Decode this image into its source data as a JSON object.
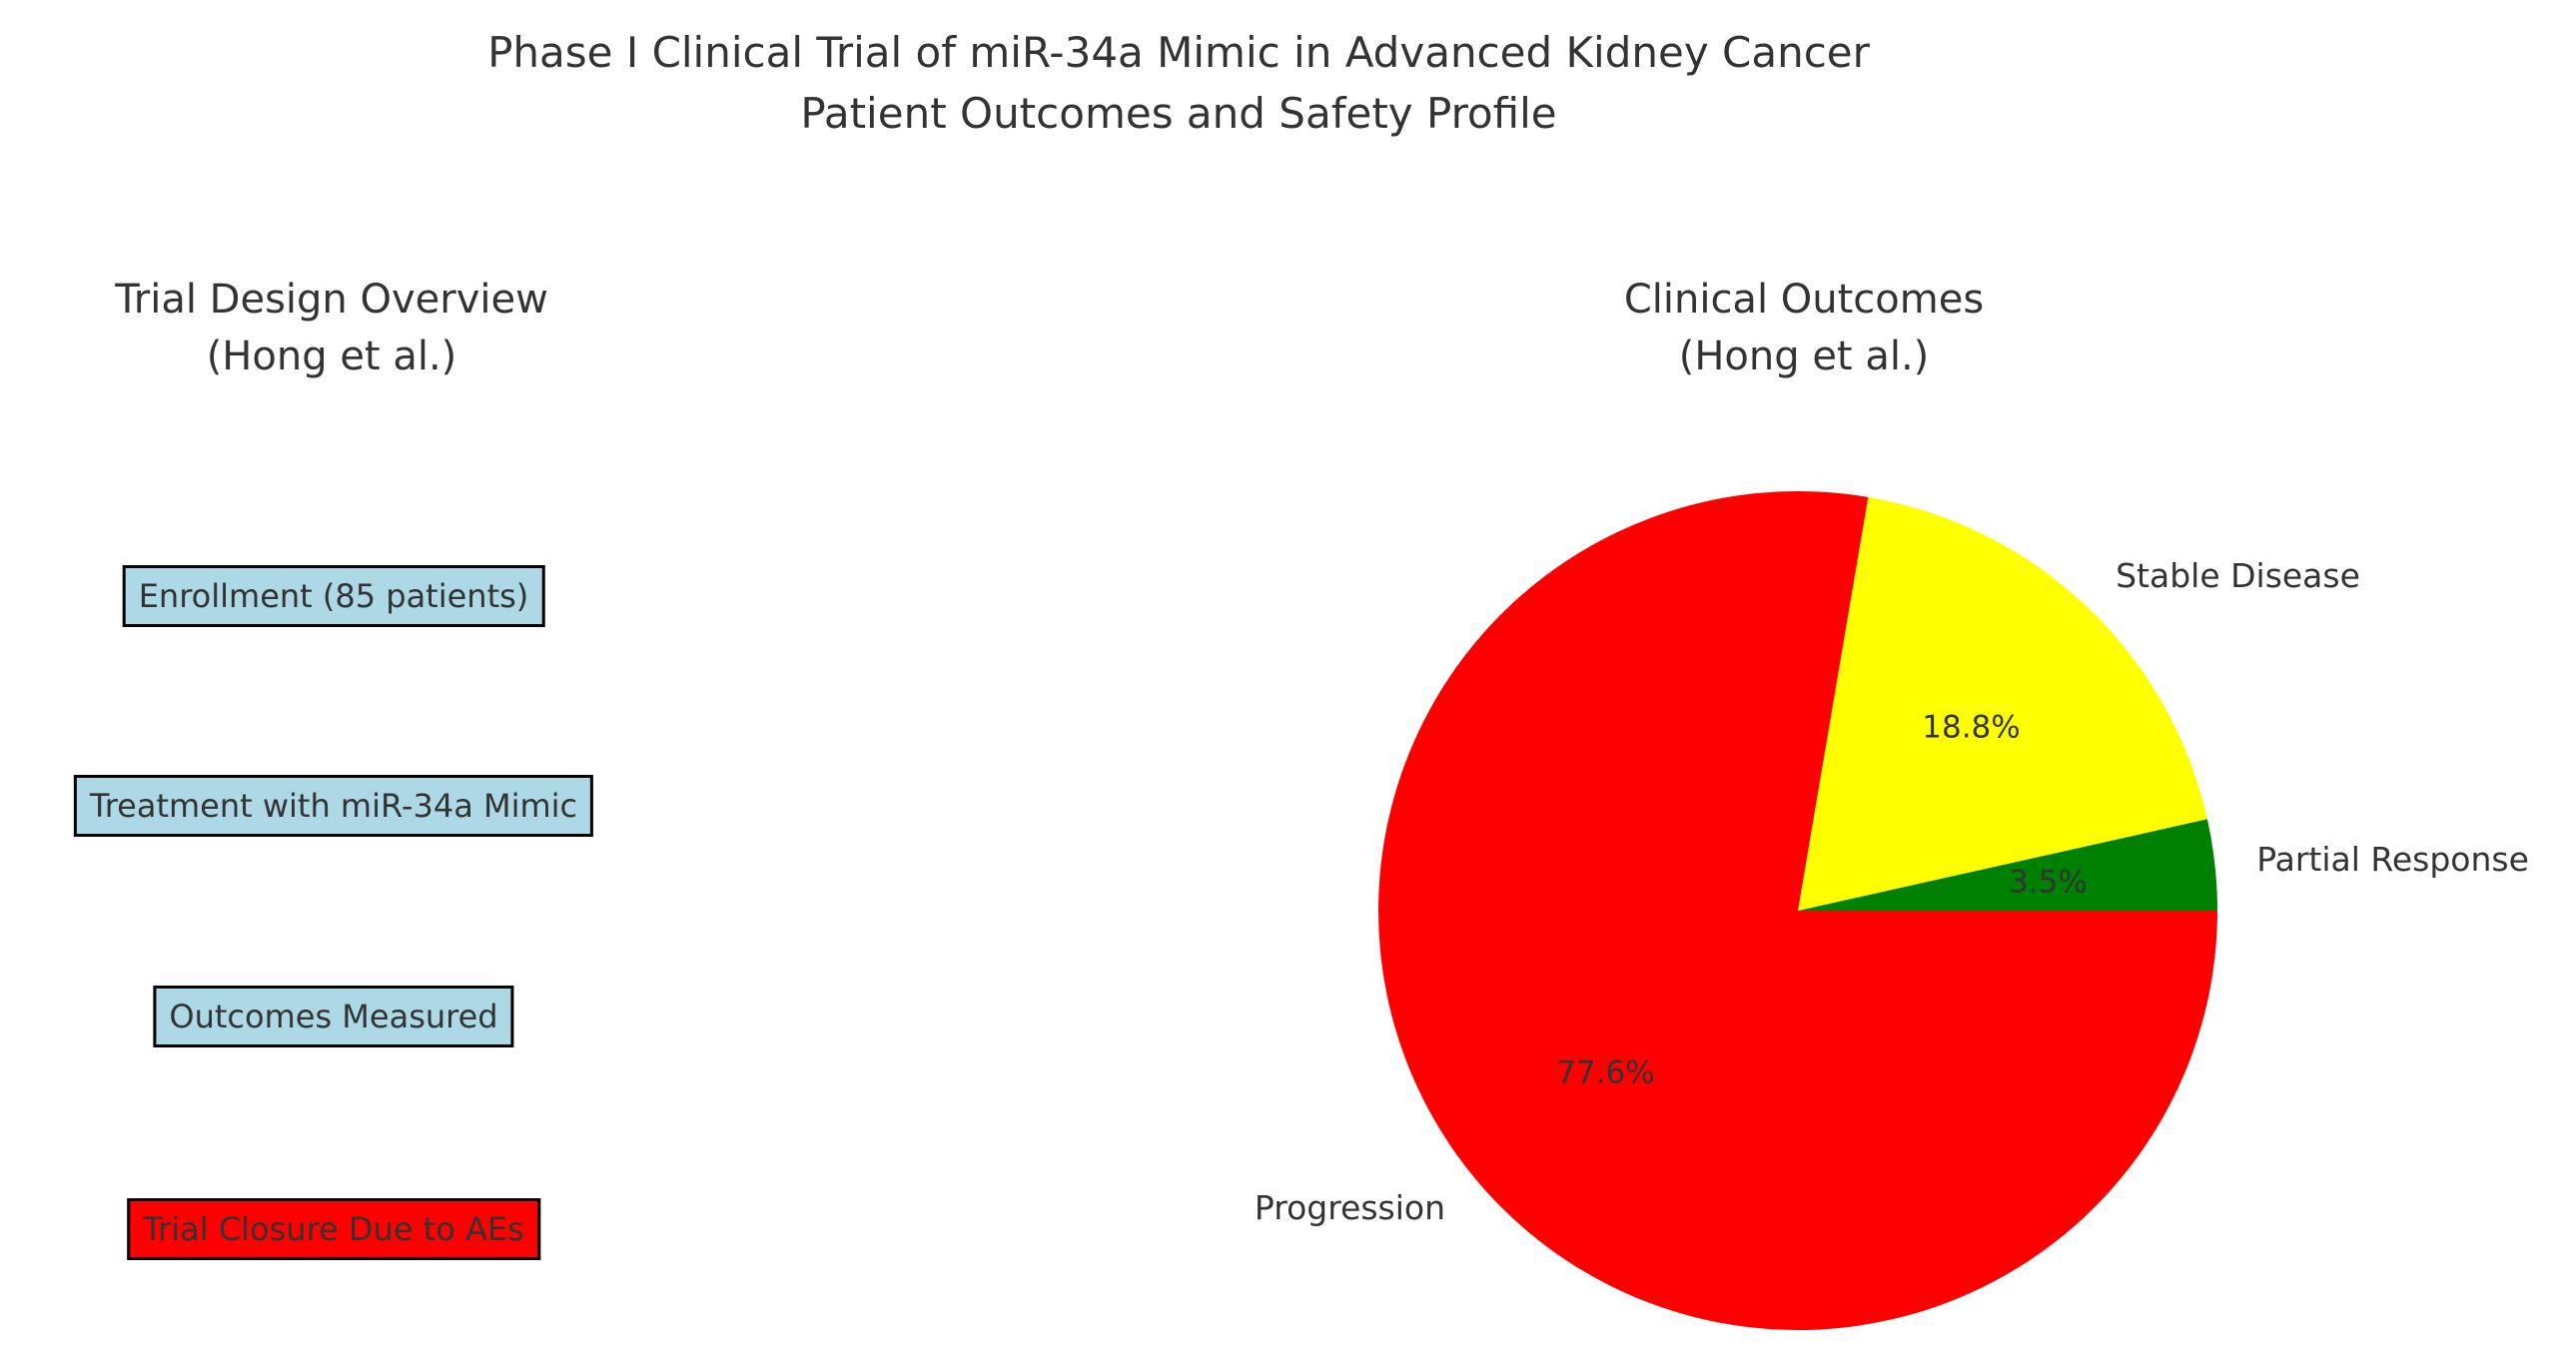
{
  "figure": {
    "title_line1": "Phase I Clinical Trial of miR-34a Mimic in Advanced Kidney Cancer",
    "title_line2": "Patient Outcomes and Safety Profile",
    "background_color": "#ffffff",
    "text_color": "#333333"
  },
  "flowchart": {
    "title_line1": "Trial Design Overview",
    "title_line2": "(Hong et al.)",
    "steps": [
      {
        "label": "Enrollment (85 patients)",
        "fill_color": "#add8e6",
        "border_color": "#000000"
      },
      {
        "label": "Treatment with miR-34a Mimic",
        "fill_color": "#add8e6",
        "border_color": "#000000"
      },
      {
        "label": "Outcomes Measured",
        "fill_color": "#add8e6",
        "border_color": "#000000"
      },
      {
        "label": "Trial Closure Due to AEs",
        "fill_color": "#ff0000",
        "border_color": "#000000"
      }
    ]
  },
  "chart_data": {
    "type": "pie",
    "title_line1": "Clinical Outcomes",
    "title_line2": "(Hong et al.)",
    "slices": [
      {
        "label": "Partial Response",
        "value": 3.5,
        "pct_label": "3.5%",
        "color": "#008000"
      },
      {
        "label": "Stable Disease",
        "value": 18.8,
        "pct_label": "18.8%",
        "color": "#ffff00"
      },
      {
        "label": "Progression",
        "value": 77.6,
        "pct_label": "77.6%",
        "color": "#ff0000"
      }
    ],
    "start_angle_deg": 0,
    "counterclockwise": true,
    "label_distance": 1.1,
    "pct_distance": 0.6,
    "legend": "none",
    "grid": "off"
  }
}
